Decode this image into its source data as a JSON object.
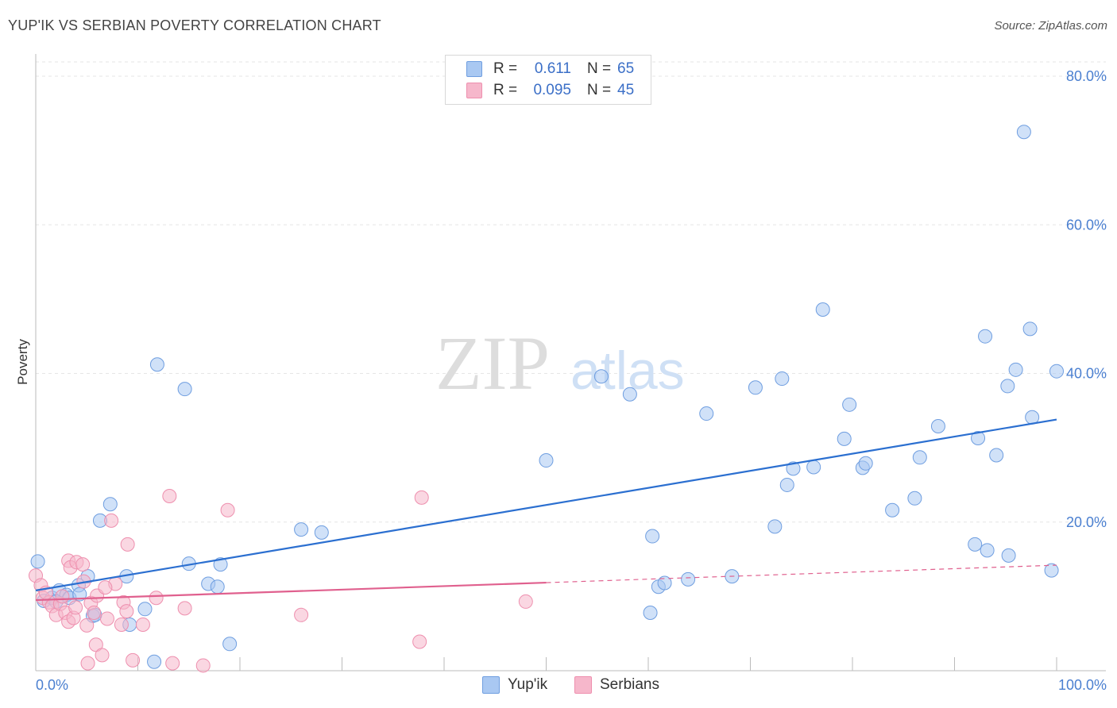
{
  "header": {
    "title": "YUP'IK VS SERBIAN POVERTY CORRELATION CHART",
    "source": "Source: ZipAtlas.com"
  },
  "colors": {
    "blue_fill": "#a9c8f2",
    "blue_stroke": "#6f9ee0",
    "blue_line": "#2b6fd0",
    "pink_fill": "#f6b7cb",
    "pink_stroke": "#ee8fae",
    "pink_line": "#e0608e",
    "accent_text": "#3b6fc7"
  },
  "legend": {
    "rows": [
      {
        "r_label": "R =",
        "r_value": "0.611",
        "n_label": "N =",
        "n_value": "65",
        "color": "#a9c8f2"
      },
      {
        "r_label": "R =",
        "r_value": "0.095",
        "n_label": "N =",
        "n_value": "45",
        "color": "#f6b7cb"
      }
    ]
  },
  "watermark": {
    "zip": "ZIP",
    "atlas": "atlas"
  },
  "chart_data": {
    "type": "scatter",
    "title": "YUP'IK VS SERBIAN POVERTY CORRELATION CHART",
    "xlabel": "",
    "ylabel": "Poverty",
    "xlim": [
      0,
      100
    ],
    "ylim": [
      0,
      80
    ],
    "x_ticks": [
      "0.0%",
      "100.0%"
    ],
    "y_ticks": [
      {
        "value": 20,
        "label": "20.0%"
      },
      {
        "value": 40,
        "label": "40.0%"
      },
      {
        "value": 60,
        "label": "60.0%"
      },
      {
        "value": 80,
        "label": "80.0%"
      }
    ],
    "grid": true,
    "series": [
      {
        "name": "Yup'ik",
        "color": "#a9c8f2",
        "stroke": "#6f9ee0",
        "trend": {
          "x0": 0,
          "y0": 10.8,
          "x1": 100,
          "y1": 33.8,
          "dashed_from": null
        },
        "points": [
          [
            0.2,
            14.7
          ],
          [
            0.8,
            9.4
          ],
          [
            1.6,
            9.8
          ],
          [
            2.3,
            10.8
          ],
          [
            3.0,
            10.2
          ],
          [
            3.3,
            9.8
          ],
          [
            4.2,
            11.5
          ],
          [
            4.3,
            10.3
          ],
          [
            5.1,
            12.7
          ],
          [
            5.6,
            7.4
          ],
          [
            6.3,
            20.2
          ],
          [
            7.3,
            22.4
          ],
          [
            8.9,
            12.7
          ],
          [
            9.2,
            6.2
          ],
          [
            10.7,
            8.3
          ],
          [
            11.6,
            1.2
          ],
          [
            11.9,
            41.2
          ],
          [
            14.6,
            37.9
          ],
          [
            15.0,
            14.4
          ],
          [
            16.9,
            11.7
          ],
          [
            17.8,
            11.3
          ],
          [
            18.1,
            14.3
          ],
          [
            19.0,
            3.6
          ],
          [
            26.0,
            19.0
          ],
          [
            28.0,
            18.6
          ],
          [
            50.0,
            28.3
          ],
          [
            55.4,
            39.6
          ],
          [
            58.2,
            37.2
          ],
          [
            60.2,
            7.8
          ],
          [
            60.4,
            18.1
          ],
          [
            61.0,
            11.3
          ],
          [
            61.6,
            11.8
          ],
          [
            63.9,
            12.3
          ],
          [
            65.7,
            34.6
          ],
          [
            68.2,
            12.7
          ],
          [
            70.5,
            38.1
          ],
          [
            72.4,
            19.4
          ],
          [
            73.1,
            39.3
          ],
          [
            73.6,
            25.0
          ],
          [
            74.2,
            27.2
          ],
          [
            76.2,
            27.4
          ],
          [
            77.1,
            48.6
          ],
          [
            79.2,
            31.2
          ],
          [
            79.7,
            35.8
          ],
          [
            81.0,
            27.3
          ],
          [
            81.3,
            27.9
          ],
          [
            83.9,
            21.6
          ],
          [
            86.1,
            23.2
          ],
          [
            86.6,
            28.7
          ],
          [
            88.4,
            32.9
          ],
          [
            92.3,
            31.3
          ],
          [
            92.0,
            17.0
          ],
          [
            93.0,
            45.0
          ],
          [
            93.2,
            16.2
          ],
          [
            94.1,
            29.0
          ],
          [
            95.3,
            15.5
          ],
          [
            95.2,
            38.3
          ],
          [
            96.0,
            40.5
          ],
          [
            96.8,
            72.5
          ],
          [
            97.4,
            46.0
          ],
          [
            97.6,
            34.1
          ],
          [
            99.5,
            13.5
          ],
          [
            100.0,
            40.3
          ],
          [
            2.0,
            9.3
          ],
          [
            5.8,
            7.5
          ]
        ]
      },
      {
        "name": "Serbians",
        "color": "#f6b7cb",
        "stroke": "#ee8fae",
        "trend": {
          "x0": 0,
          "y0": 9.5,
          "x1": 100,
          "y1": 14.2,
          "dashed_from": 50.0
        },
        "points": [
          [
            0.0,
            12.8
          ],
          [
            0.5,
            11.5
          ],
          [
            0.7,
            9.8
          ],
          [
            1.3,
            9.2
          ],
          [
            1.6,
            8.7
          ],
          [
            2.0,
            7.5
          ],
          [
            2.4,
            9.0
          ],
          [
            2.9,
            7.8
          ],
          [
            3.2,
            6.6
          ],
          [
            3.2,
            14.8
          ],
          [
            3.4,
            13.9
          ],
          [
            3.7,
            7.1
          ],
          [
            4.0,
            14.6
          ],
          [
            4.6,
            14.3
          ],
          [
            4.7,
            12.0
          ],
          [
            5.0,
            6.1
          ],
          [
            5.1,
            1.0
          ],
          [
            5.4,
            9.1
          ],
          [
            5.7,
            7.8
          ],
          [
            5.9,
            3.5
          ],
          [
            6.0,
            10.1
          ],
          [
            6.5,
            2.1
          ],
          [
            7.0,
            7.0
          ],
          [
            7.4,
            20.2
          ],
          [
            7.8,
            11.7
          ],
          [
            8.4,
            6.2
          ],
          [
            8.6,
            9.2
          ],
          [
            8.9,
            8.0
          ],
          [
            9.0,
            17.0
          ],
          [
            9.5,
            1.4
          ],
          [
            10.5,
            6.2
          ],
          [
            11.8,
            9.8
          ],
          [
            13.1,
            23.5
          ],
          [
            13.4,
            1.0
          ],
          [
            14.6,
            8.4
          ],
          [
            16.4,
            0.7
          ],
          [
            18.8,
            21.6
          ],
          [
            26.0,
            7.5
          ],
          [
            37.6,
            3.9
          ],
          [
            37.8,
            23.3
          ],
          [
            48.0,
            9.3
          ],
          [
            1.0,
            10.5
          ],
          [
            2.6,
            10.0
          ],
          [
            3.9,
            8.5
          ],
          [
            6.8,
            11.2
          ]
        ]
      }
    ]
  },
  "bottom_legend": [
    {
      "label": "Yup'ik",
      "color": "#a9c8f2"
    },
    {
      "label": "Serbians",
      "color": "#f6b7cb"
    }
  ]
}
